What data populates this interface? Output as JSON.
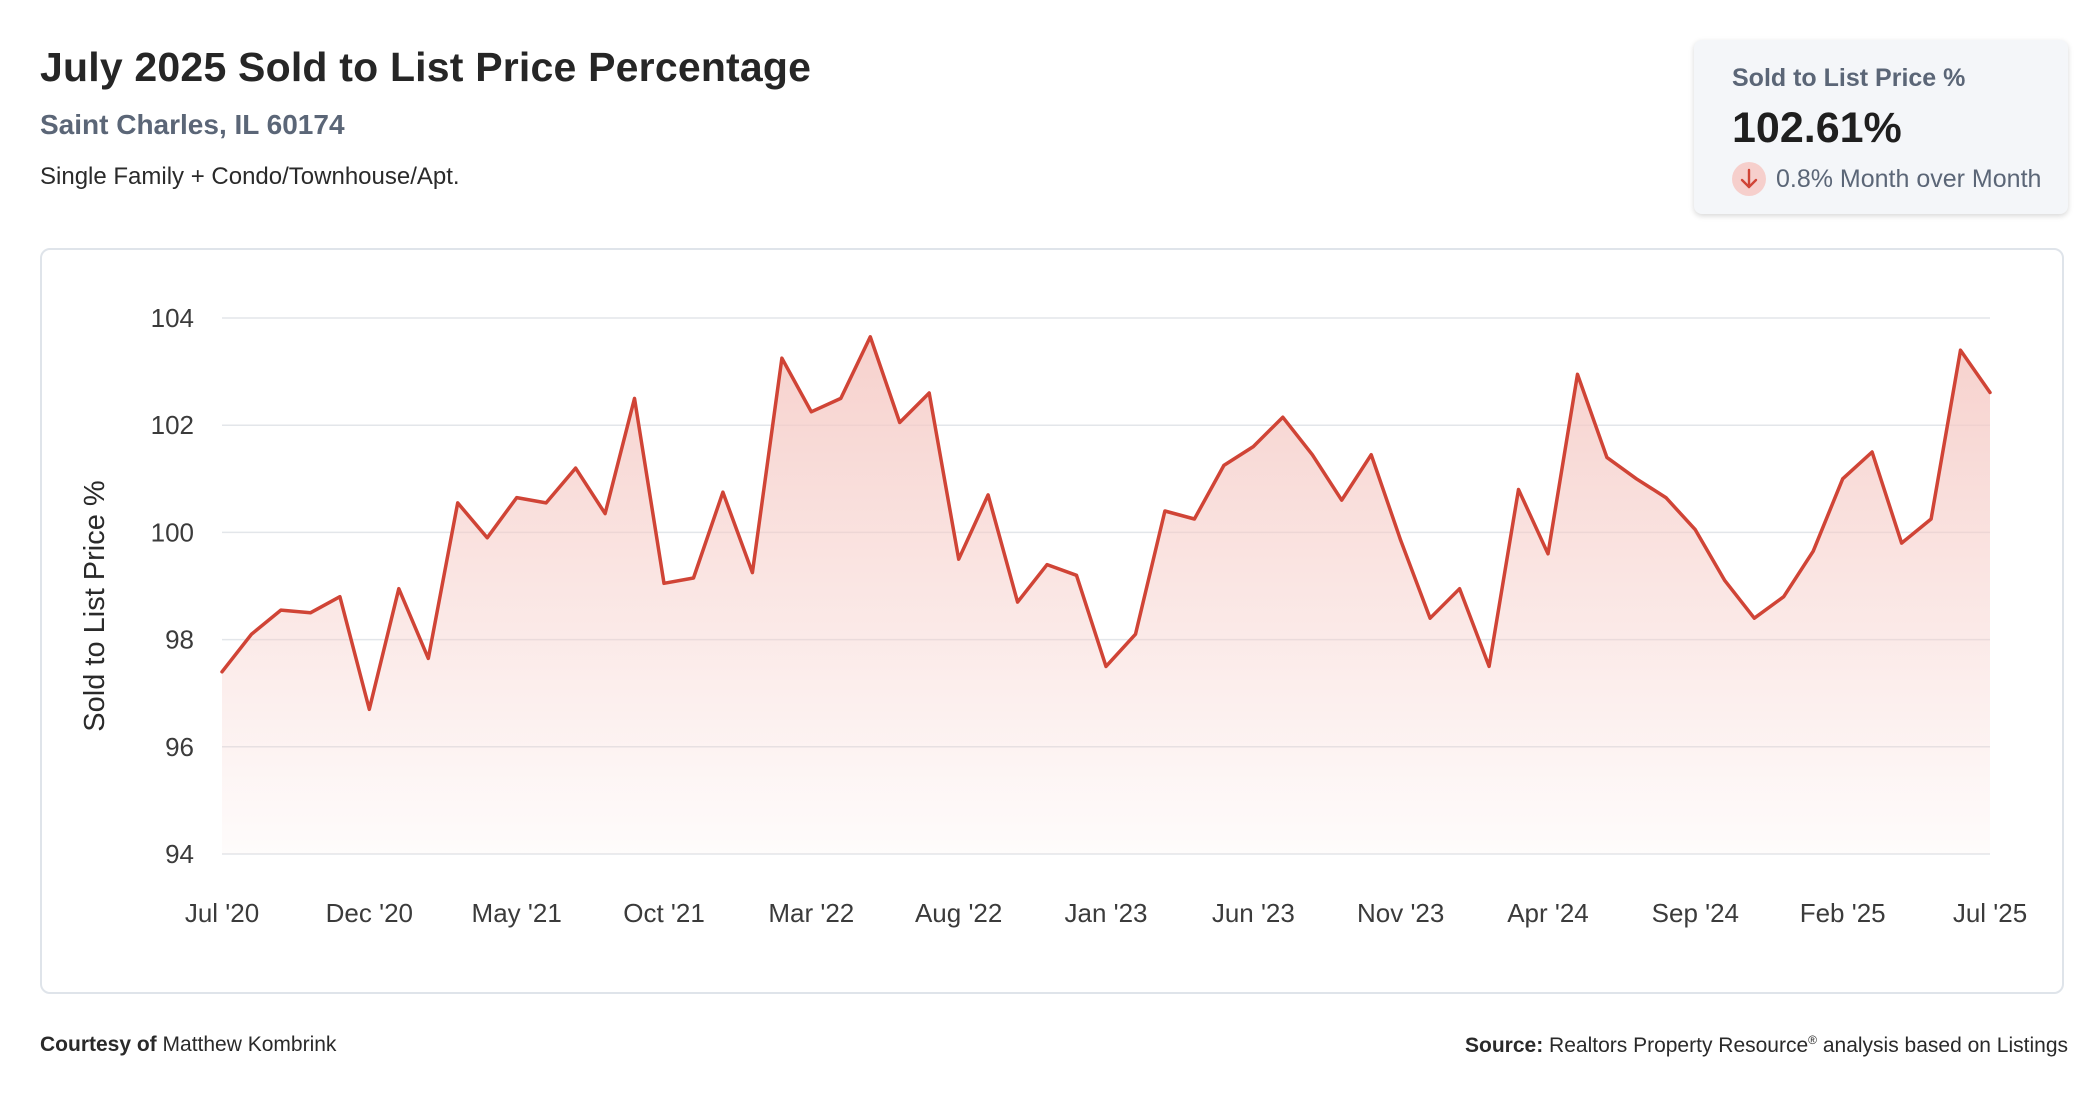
{
  "header": {
    "title": "July 2025 Sold to List Price Percentage",
    "location": "Saint Charles, IL 60174",
    "subtitle": "Single Family + Condo/Townhouse/Apt."
  },
  "stat": {
    "label": "Sold to List Price %",
    "value": "102.61%",
    "change": "0.8% Month over Month",
    "direction_icon": "arrow-down-icon",
    "badge_color": "#f6cfcc",
    "arrow_color": "#d04436"
  },
  "footer": {
    "courtesy_label": "Courtesy of",
    "courtesy_name": "Matthew Kombrink",
    "source_label": "Source:",
    "source_text": "Realtors Property Resource",
    "source_mark": "®",
    "source_suffix": "analysis based on Listings"
  },
  "chart_data": {
    "type": "area",
    "title": "July 2025 Sold to List Price Percentage",
    "ylabel": "Sold to List Price %",
    "ylim": [
      94,
      104
    ],
    "yticks": [
      94,
      96,
      98,
      100,
      102,
      104
    ],
    "grid": true,
    "line_color": "#d04436",
    "fill_color": "#f5c9c4",
    "x_tick_labels": [
      "Jul '20",
      "Dec '20",
      "May '21",
      "Oct '21",
      "Mar '22",
      "Aug '22",
      "Jan '23",
      "Jun '23",
      "Nov '23",
      "Apr '24",
      "Sep '24",
      "Feb '25",
      "Jul '25"
    ],
    "x": [
      "2020-07",
      "2020-08",
      "2020-09",
      "2020-10",
      "2020-11",
      "2020-12",
      "2021-01",
      "2021-02",
      "2021-03",
      "2021-04",
      "2021-05",
      "2021-06",
      "2021-07",
      "2021-08",
      "2021-09",
      "2021-10",
      "2021-11",
      "2021-12",
      "2022-01",
      "2022-02",
      "2022-03",
      "2022-04",
      "2022-05",
      "2022-06",
      "2022-07",
      "2022-08",
      "2022-09",
      "2022-10",
      "2022-11",
      "2022-12",
      "2023-01",
      "2023-02",
      "2023-03",
      "2023-04",
      "2023-05",
      "2023-06",
      "2023-07",
      "2023-08",
      "2023-09",
      "2023-10",
      "2023-11",
      "2023-12",
      "2024-01",
      "2024-02",
      "2024-03",
      "2024-04",
      "2024-05",
      "2024-06",
      "2024-07",
      "2024-08",
      "2024-09",
      "2024-10",
      "2024-11",
      "2024-12",
      "2025-01",
      "2025-02",
      "2025-03",
      "2025-04",
      "2025-05",
      "2025-06",
      "2025-07"
    ],
    "values": [
      97.4,
      98.1,
      98.55,
      98.5,
      98.8,
      96.7,
      98.95,
      97.65,
      100.55,
      99.9,
      100.65,
      100.55,
      101.2,
      100.35,
      102.5,
      99.05,
      99.15,
      100.75,
      99.25,
      103.25,
      102.25,
      102.5,
      103.65,
      102.05,
      102.6,
      99.5,
      100.7,
      98.7,
      99.4,
      99.2,
      97.5,
      98.1,
      100.4,
      100.25,
      101.25,
      101.6,
      102.15,
      101.45,
      100.6,
      101.45,
      99.85,
      98.4,
      98.95,
      97.5,
      100.8,
      99.6,
      102.95,
      101.4,
      101.0,
      100.65,
      100.05,
      99.1,
      98.4,
      98.8,
      99.65,
      101.0,
      101.5,
      99.8,
      100.25,
      103.4,
      102.61
    ]
  }
}
